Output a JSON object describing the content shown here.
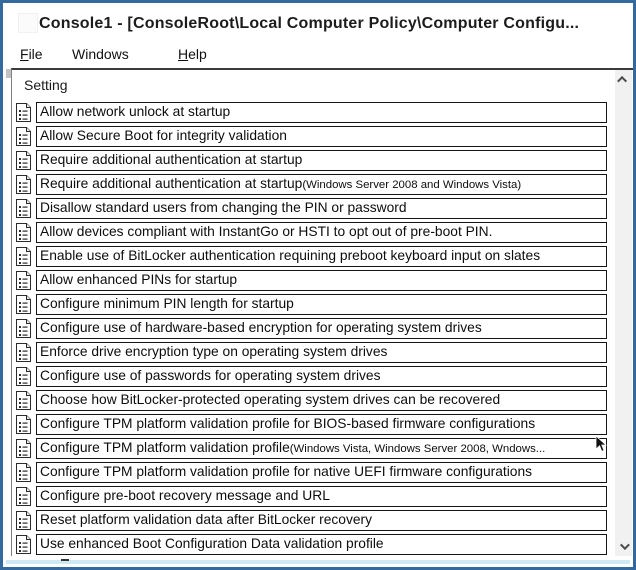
{
  "window": {
    "title": "Console1 - [ConsoleRoot\\Local Computer Policy\\Computer Configu..."
  },
  "menu": {
    "items": [
      {
        "u": "F",
        "rest": "ile"
      },
      {
        "u": "",
        "rest": "Windows"
      },
      {
        "u": "H",
        "rest": "elp"
      }
    ]
  },
  "list": {
    "column_header": "Setting",
    "rows": [
      {
        "main": "Allow network unlock at startup",
        "suffix": ""
      },
      {
        "main": "Allow Secure Boot for integrity validation",
        "suffix": ""
      },
      {
        "main": "Require additional authentication at startup",
        "suffix": ""
      },
      {
        "main": "Require additional authentication at startup ",
        "suffix": "(Windows Server 2008 and Windows Vista)"
      },
      {
        "main": "Disallow standard users from changing the PIN or password",
        "suffix": ""
      },
      {
        "main": "Allow devices compliant with InstantGo or HSTI to opt out of pre-boot PIN.",
        "suffix": ""
      },
      {
        "main": "Enable use of BitLocker authentication requining preboot keyboard input on slates",
        "suffix": ""
      },
      {
        "main": "Allow enhanced PINs for startup",
        "suffix": ""
      },
      {
        "main": "Configure minimum PIN length for startup",
        "suffix": ""
      },
      {
        "main": "Configure use of hardware-based encryption for operating system drives",
        "suffix": ""
      },
      {
        "main": "Enforce drive encryption type on operating system drives",
        "suffix": ""
      },
      {
        "main": "Configure use of passwords for operating system drives",
        "suffix": ""
      },
      {
        "main": "Choose how BitLocker-protected operating system drives can be recovered",
        "suffix": ""
      },
      {
        "main": "Configure TPM platform validation profile for BIOS-based firmware configurations",
        "suffix": ""
      },
      {
        "main": "Configure TPM platform validation profile",
        "suffix": "(Windows Vista, Windows Server 2008, Wndows..."
      },
      {
        "main": "Configure TPM platform validation profile for native UEFI firmware configurations",
        "suffix": ""
      },
      {
        "main": "Configure pre-boot recovery message and URL",
        "suffix": ""
      },
      {
        "main": "Reset platform validation data after BitLocker recovery",
        "suffix": ""
      },
      {
        "main": "Use enhanced Boot Configuration Data validation profile",
        "suffix": ""
      }
    ]
  },
  "icons": {
    "row_icon": "policy-setting-icon",
    "scroll_up": "chevron-up-icon",
    "scroll_down": "chevron-down-icon",
    "cursor": "mouse-pointer-icon"
  },
  "colors": {
    "window_border": "#35689c",
    "bottom_strip": "#cfe9f4",
    "row_border": "#151515",
    "scroll_track": "#f1f1f1",
    "scroll_arrow": "#4d4d4d"
  }
}
